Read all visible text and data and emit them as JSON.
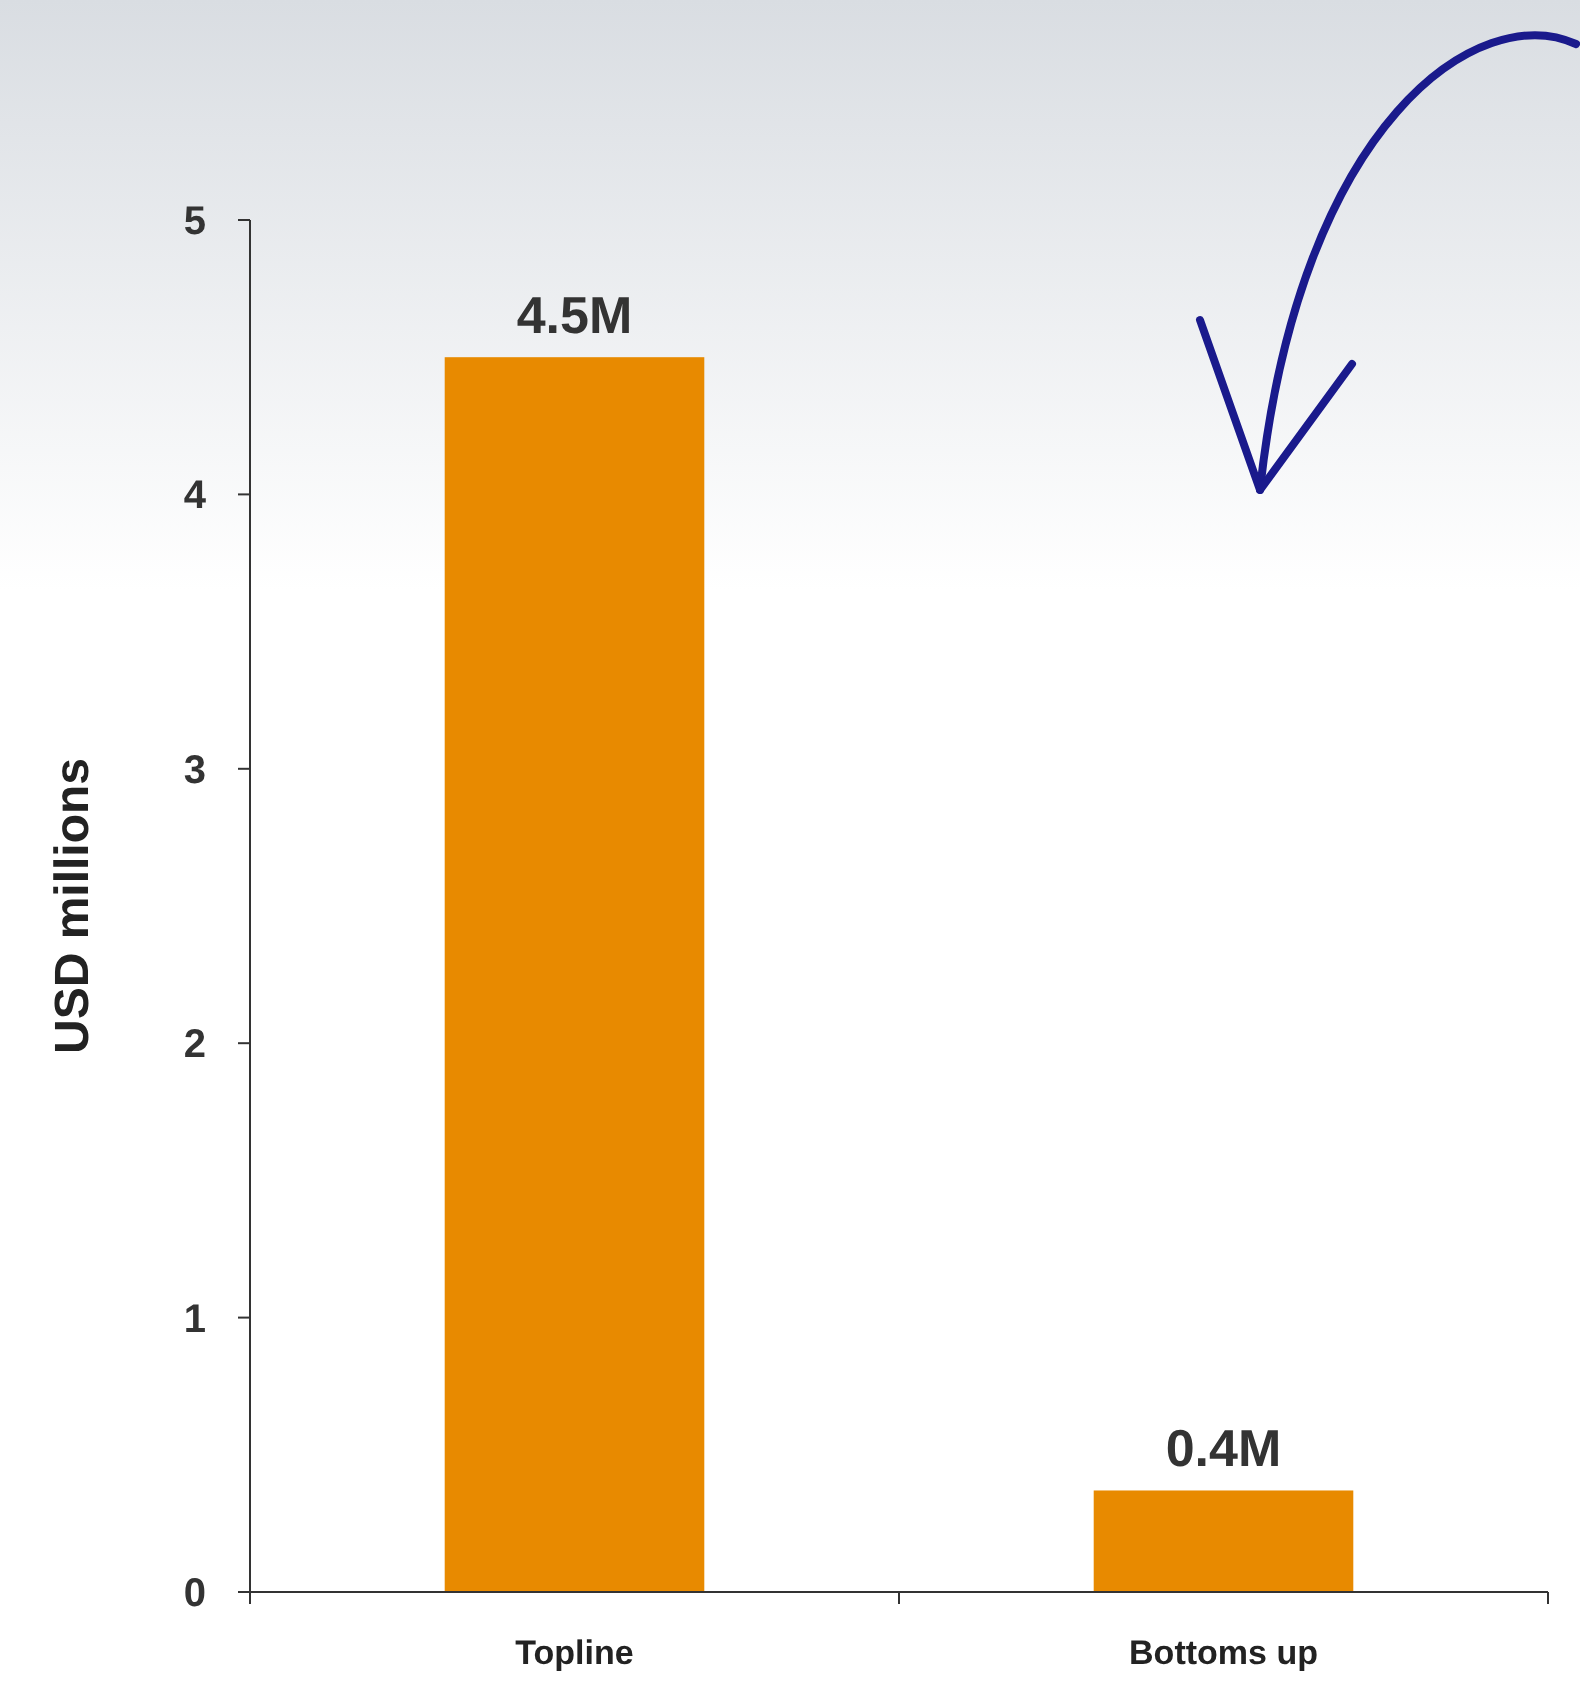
{
  "chart_data": {
    "type": "bar",
    "ylabel": "USD millions",
    "categories": [
      "Topline",
      "Bottoms up"
    ],
    "values": [
      4.5,
      0.37
    ],
    "color": "#e88a00",
    "value_labels": [
      "4.5M",
      "0.4M"
    ],
    "ylim": [
      0,
      5
    ],
    "yticks": [
      0,
      1,
      2,
      3,
      4,
      5
    ],
    "grid": false
  }
}
